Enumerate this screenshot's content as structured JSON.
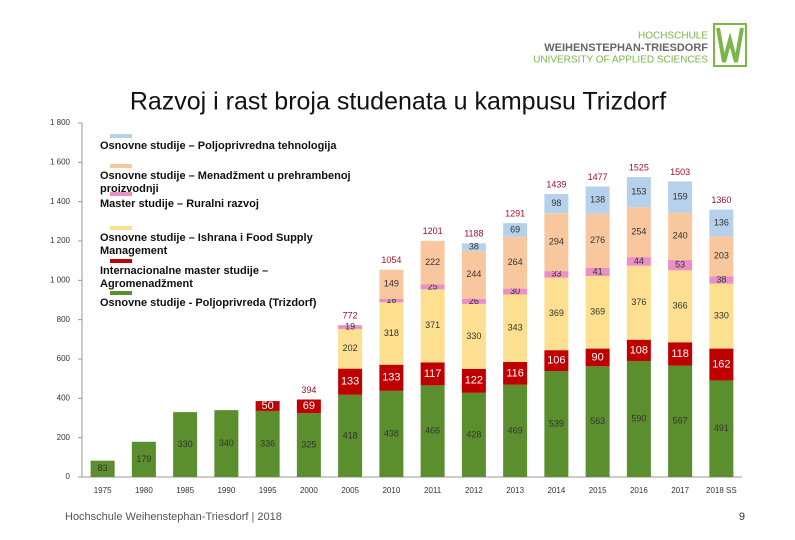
{
  "header": {
    "logo_line1": "HOCHSCHULE",
    "logo_line2": "WEIHENSTEPHAN-TRIESDORF",
    "logo_line3": "UNIVERSITY OF APPLIED SCIENCES"
  },
  "footer": {
    "text": "Hochschule Weihenstephan-Triesdorf | 2018",
    "page": "9"
  },
  "chart_data": {
    "type": "stacked_bar",
    "title": "Razvoj i rast broja studenata u kampusu Trizdorf",
    "categories": [
      "1975",
      "1980",
      "1985",
      "1990",
      "1995",
      "2000",
      "2005",
      "2010",
      "2011",
      "2012",
      "2013",
      "2014",
      "2015",
      "2016",
      "2017",
      "2018 SS"
    ],
    "series": [
      {
        "name": "Osnovne studije - Poljoprivreda (Trizdorf)",
        "color": "#5b8f2e",
        "values": [
          83,
          179,
          330,
          340,
          336,
          325,
          418,
          438,
          466,
          428,
          469,
          539,
          563,
          590,
          567,
          491
        ]
      },
      {
        "name": "Internacionalne master studije – Agromenadžment",
        "color": "#c00000",
        "values": [
          null,
          null,
          null,
          null,
          50,
          69,
          133,
          133,
          117,
          122,
          116,
          106,
          90,
          108,
          118,
          162
        ]
      },
      {
        "name": "Osnovne studije – Ishrana i Food Supply Management",
        "color": "#fde08f",
        "values": [
          null,
          null,
          null,
          null,
          null,
          null,
          202,
          318,
          371,
          330,
          343,
          369,
          369,
          376,
          366,
          330
        ]
      },
      {
        "name": "Master studije – Ruralni razvoj",
        "color": "#ec8fc4",
        "values": [
          null,
          null,
          null,
          null,
          null,
          null,
          19,
          16,
          25,
          26,
          30,
          33,
          41,
          44,
          53,
          38
        ]
      },
      {
        "name": "Osnovne studije – Menadžment u prehrambenoj proizvodnji",
        "color": "#f9c79e",
        "values": [
          null,
          null,
          null,
          null,
          null,
          null,
          null,
          149,
          222,
          244,
          264,
          294,
          276,
          254,
          240,
          203
        ]
      },
      {
        "name": "Osnovne studije – Poljoprivredna tehnologija",
        "color": "#b6d1ec",
        "values": [
          null,
          null,
          null,
          null,
          null,
          null,
          null,
          null,
          null,
          38,
          69,
          98,
          138,
          153,
          159,
          136
        ]
      }
    ],
    "totals": [
      null,
      null,
      null,
      null,
      null,
      394,
      772,
      1054,
      1201,
      1188,
      1291,
      1439,
      1477,
      1525,
      1503,
      1360
    ],
    "ylim": [
      0,
      1800
    ],
    "yticks": [
      0,
      200,
      400,
      600,
      800,
      {
        "value": 1000,
        "label": "1 000"
      },
      {
        "value": 1200,
        "label": "1 200"
      },
      {
        "value": 1400,
        "label": "1 400"
      },
      {
        "value": 1600,
        "label": "1 600"
      },
      {
        "value": 1800,
        "label": "1 800"
      }
    ]
  }
}
